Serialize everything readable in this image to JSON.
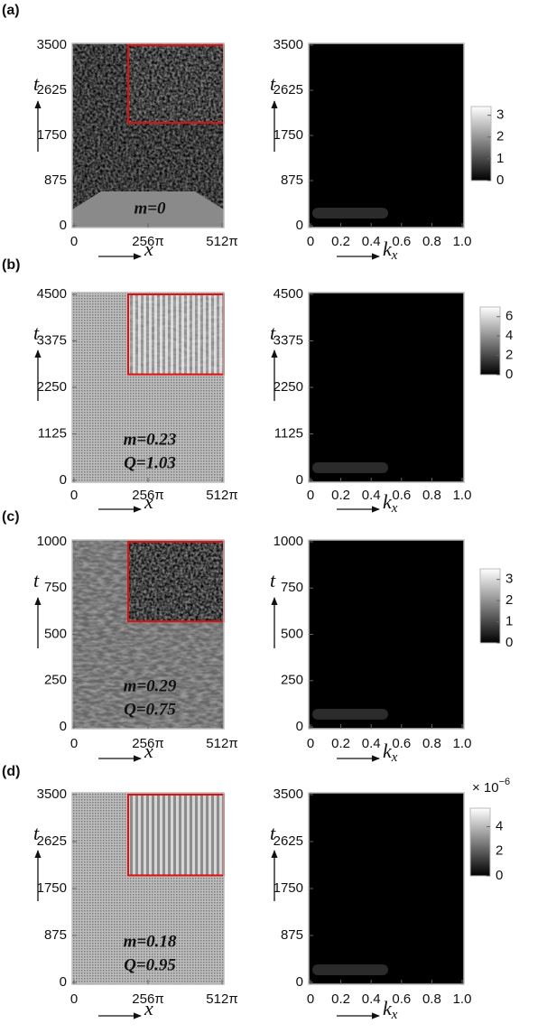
{
  "chart_data": [
    {
      "type": "heatmap",
      "label": "(a)",
      "ylabel": "t",
      "xlabel": "x",
      "xlim": [
        0,
        512
      ],
      "xticks": [
        0,
        {
          "value": 256,
          "label": "256π"
        },
        {
          "value": 512,
          "label": "512π"
        }
      ],
      "ylim": [
        0,
        3500
      ],
      "yticks": [
        0,
        875,
        1750,
        2625,
        3500
      ],
      "annotations": [
        "m=0"
      ]
    },
    {
      "type": "heatmap",
      "ylabel": "t",
      "xlabel": "k",
      "xlabel_subscript": "x",
      "xlim": [
        0,
        1
      ],
      "xticks": [
        0,
        0.2,
        0.4,
        0.6,
        0.8,
        {
          "value": 1,
          "label": "1.0"
        }
      ],
      "ylim": [
        0,
        3500
      ],
      "yticks": [
        0,
        875,
        1750,
        2625,
        3500
      ],
      "clim": [
        0,
        3.4
      ],
      "cticks": [
        0,
        1,
        2,
        3
      ]
    },
    {
      "type": "heatmap",
      "label": "(b)",
      "ylabel": "t",
      "xlabel": "x",
      "xlim": [
        0,
        512
      ],
      "xticks": [
        0,
        {
          "value": 256,
          "label": "256π"
        },
        {
          "value": 512,
          "label": "512π"
        }
      ],
      "ylim": [
        0,
        4500
      ],
      "yticks": [
        0,
        1125,
        2250,
        3375,
        4500
      ],
      "annotations": [
        "m=0.23",
        "Q=1.03"
      ]
    },
    {
      "type": "heatmap",
      "ylabel": "t",
      "xlabel": "k",
      "xlabel_subscript": "x",
      "xlim": [
        0,
        1
      ],
      "xticks": [
        0,
        0.2,
        0.4,
        0.6,
        0.8,
        {
          "value": 1,
          "label": "1.0"
        }
      ],
      "ylim": [
        0,
        4500
      ],
      "yticks": [
        0,
        1125,
        2250,
        3375,
        4500
      ],
      "clim": [
        0,
        7
      ],
      "cticks": [
        0,
        2,
        4,
        6
      ]
    },
    {
      "type": "heatmap",
      "label": "(c)",
      "ylabel": "t",
      "xlabel": "x",
      "xlim": [
        0,
        512
      ],
      "xticks": [
        0,
        {
          "value": 256,
          "label": "256π"
        },
        {
          "value": 512,
          "label": "512π"
        }
      ],
      "ylim": [
        0,
        1000
      ],
      "yticks": [
        0,
        250,
        500,
        750,
        1000
      ],
      "annotations": [
        "m=0.29",
        "Q=0.75"
      ]
    },
    {
      "type": "heatmap",
      "ylabel": "t",
      "xlabel": "k",
      "xlabel_subscript": "x",
      "xlim": [
        0,
        1
      ],
      "xticks": [
        0,
        0.2,
        0.4,
        0.6,
        0.8,
        {
          "value": 1,
          "label": "1.0"
        }
      ],
      "ylim": [
        0,
        1000
      ],
      "yticks": [
        0,
        250,
        500,
        750,
        1000
      ],
      "clim": [
        0,
        3.5
      ],
      "cticks": [
        0,
        1,
        2,
        3
      ]
    },
    {
      "type": "heatmap",
      "label": "(d)",
      "ylabel": "t",
      "xlabel": "x",
      "xlim": [
        0,
        512
      ],
      "xticks": [
        0,
        {
          "value": 256,
          "label": "256π"
        },
        {
          "value": 512,
          "label": "512π"
        }
      ],
      "ylim": [
        0,
        3500
      ],
      "yticks": [
        0,
        875,
        1750,
        2625,
        3500
      ],
      "annotations": [
        "m=0.18",
        "Q=0.95"
      ]
    },
    {
      "type": "heatmap",
      "ylabel": "t",
      "xlabel": "k",
      "xlabel_subscript": "x",
      "xlim": [
        0,
        1
      ],
      "xticks": [
        0,
        0.2,
        0.4,
        0.6,
        0.8,
        {
          "value": 1,
          "label": "1.0"
        }
      ],
      "ylim": [
        0,
        3500
      ],
      "yticks": [
        0,
        875,
        1750,
        2625,
        3500
      ],
      "clim": [
        0,
        5.5
      ],
      "cticks": [
        0,
        2,
        4
      ],
      "colorbar_scale": "× 10",
      "colorbar_exponent": "−6"
    }
  ]
}
